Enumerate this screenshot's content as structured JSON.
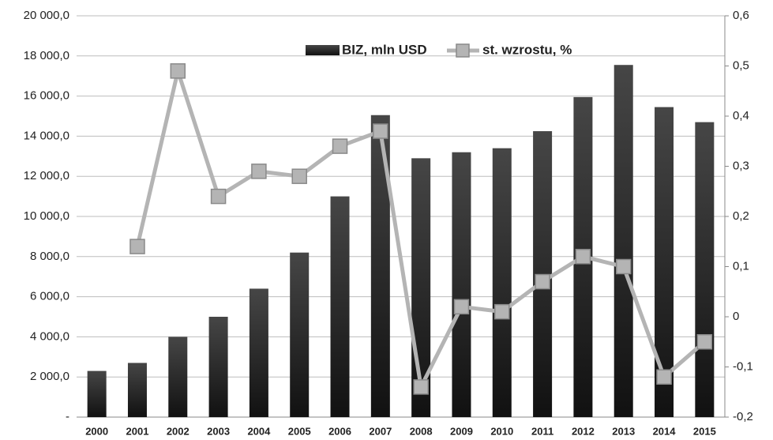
{
  "chart_data": {
    "type": "bar-line",
    "categories": [
      "2000",
      "2001",
      "2002",
      "2003",
      "2004",
      "2005",
      "2006",
      "2007",
      "2008",
      "2009",
      "2010",
      "2011",
      "2012",
      "2013",
      "2014",
      "2015"
    ],
    "series": [
      {
        "name": "BIZ, mln USD",
        "color": "#464646",
        "type": "bar",
        "axis": "y",
        "values": [
          2300,
          2700,
          4000,
          5000,
          6400,
          8200,
          11000,
          15050,
          12900,
          13200,
          13400,
          14250,
          15950,
          17550,
          15450,
          14700
        ]
      },
      {
        "name": "st. wzrostu, %",
        "color": "#b4b4b4",
        "type": "line",
        "axis": "y2",
        "values": [
          null,
          0.14,
          0.49,
          0.24,
          0.29,
          0.28,
          0.34,
          0.37,
          -0.14,
          0.02,
          0.01,
          0.07,
          0.12,
          0.1,
          -0.12,
          -0.05
        ]
      }
    ],
    "ylim": [
      0,
      20000
    ],
    "yticks": [
      {
        "value": 0,
        "label": "-"
      },
      {
        "value": 2000,
        "label": "2 000,0"
      },
      {
        "value": 4000,
        "label": "4 000,0"
      },
      {
        "value": 6000,
        "label": "6 000,0"
      },
      {
        "value": 8000,
        "label": "8 000,0"
      },
      {
        "value": 10000,
        "label": "10 000,0"
      },
      {
        "value": 12000,
        "label": "12 000,0"
      },
      {
        "value": 14000,
        "label": "14 000,0"
      },
      {
        "value": 16000,
        "label": "16 000,0"
      },
      {
        "value": 18000,
        "label": "18 000,0"
      },
      {
        "value": 20000,
        "label": "20 000,0"
      }
    ],
    "y2lim": [
      -0.2,
      0.6
    ],
    "y2ticks": [
      {
        "value": -0.2,
        "label": "-0,2"
      },
      {
        "value": -0.1,
        "label": "-0,1"
      },
      0,
      {
        "value": 0.1,
        "label": "0,1"
      },
      {
        "value": 0.2,
        "label": "0,2"
      },
      {
        "value": 0.3,
        "label": "0,3"
      },
      {
        "value": 0.4,
        "label": "0,4"
      },
      {
        "value": 0.5,
        "label": "0,5"
      },
      {
        "value": 0.6,
        "label": "0,6"
      }
    ],
    "grid": true,
    "legend": "top"
  }
}
